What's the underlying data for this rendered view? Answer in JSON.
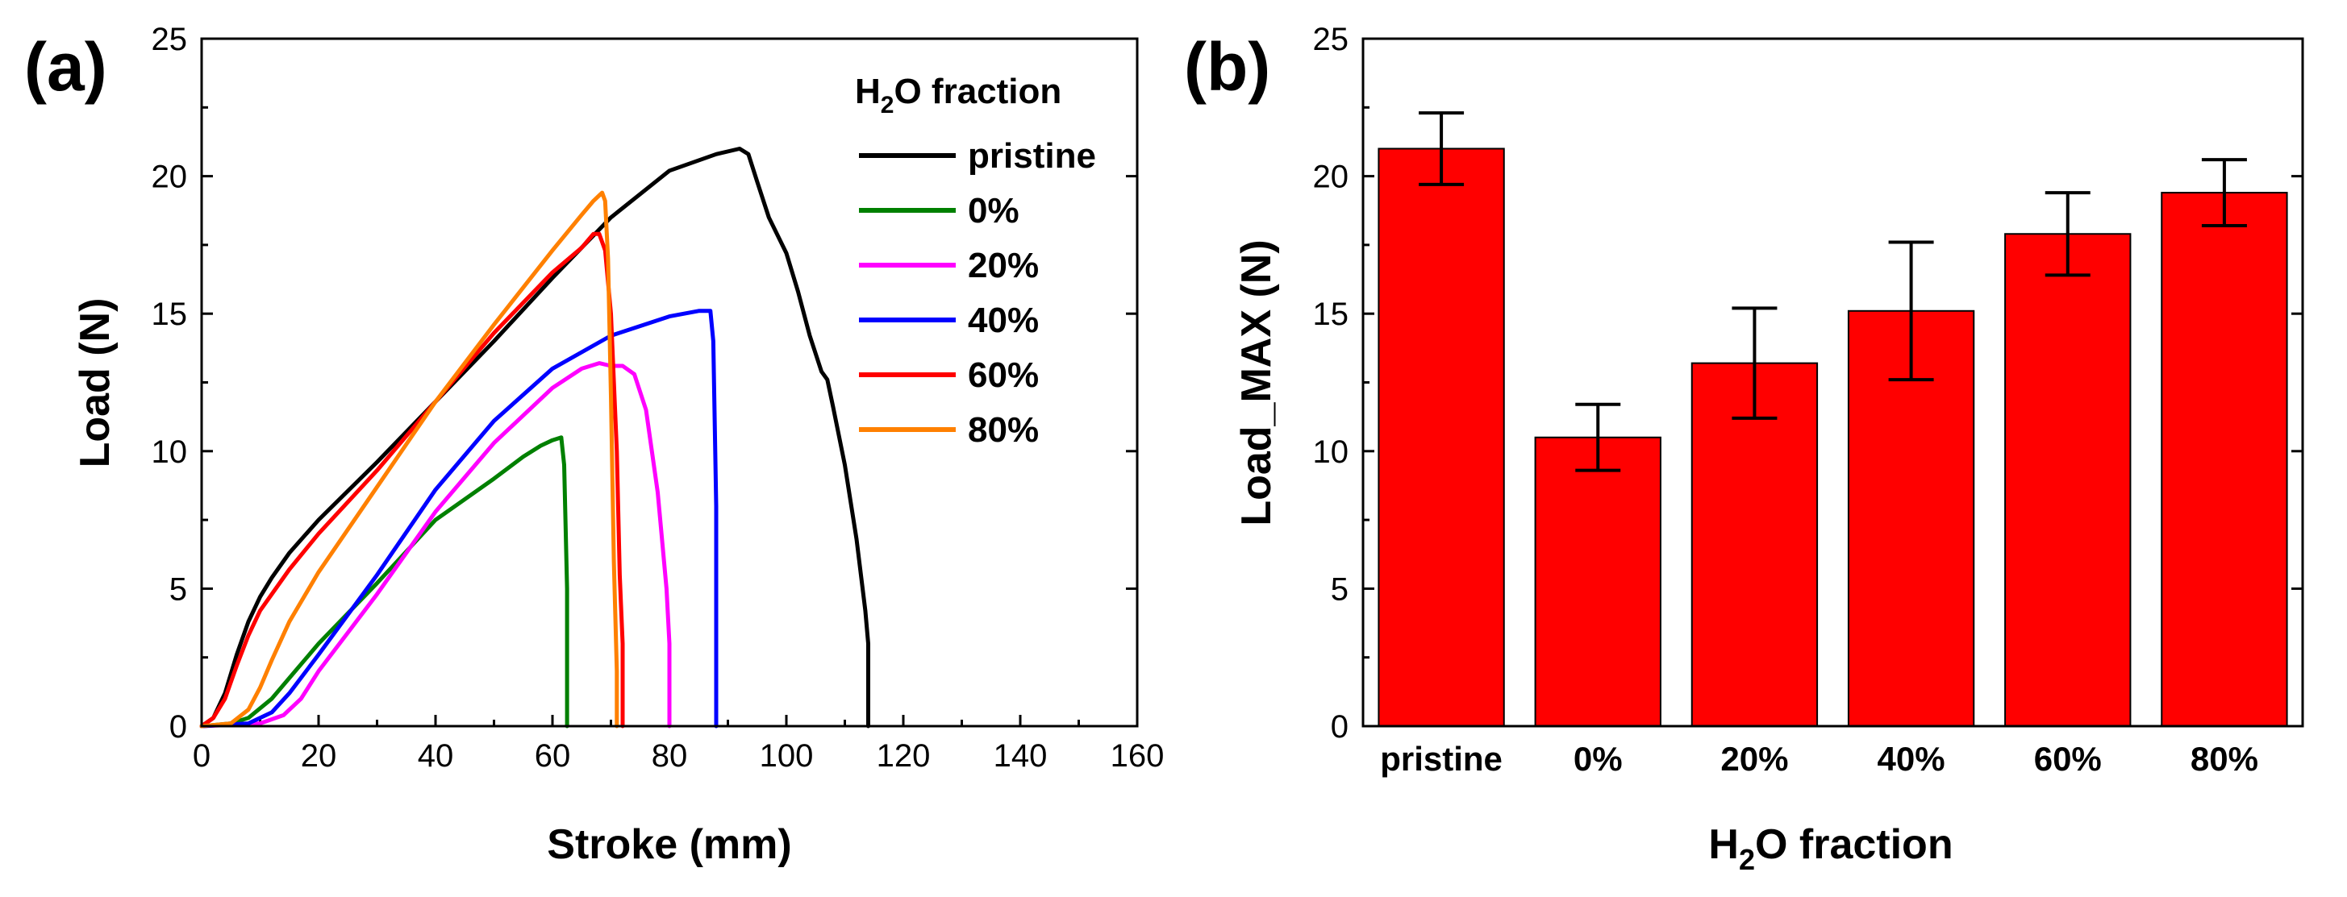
{
  "chart_data": [
    {
      "type": "line",
      "panel_label": "(a)",
      "xlabel": "Stroke (mm)",
      "ylabel": "Load (N)",
      "xlim": [
        0,
        160
      ],
      "ylim": [
        0,
        25
      ],
      "xticks": [
        0,
        20,
        40,
        60,
        80,
        100,
        120,
        140,
        160
      ],
      "yticks": [
        0,
        5,
        10,
        15,
        20,
        25
      ],
      "legend": {
        "title_main": "H",
        "title_sub": "2",
        "title_rest": "O fraction",
        "position": "top-right"
      },
      "series": [
        {
          "name": "pristine",
          "color": "#000000",
          "x": [
            0,
            2,
            4,
            6,
            8,
            10,
            12,
            15,
            20,
            30,
            40,
            50,
            60,
            70,
            80,
            88,
            92,
            93.5,
            95,
            97,
            100,
            102,
            104,
            106,
            107,
            108,
            110,
            112,
            113.5,
            114,
            114
          ],
          "y": [
            0,
            0.3,
            1.2,
            2.6,
            3.8,
            4.7,
            5.4,
            6.3,
            7.5,
            9.6,
            11.8,
            14.0,
            16.3,
            18.5,
            20.2,
            20.8,
            21.0,
            20.8,
            19.8,
            18.5,
            17.2,
            15.8,
            14.2,
            12.9,
            12.6,
            11.6,
            9.5,
            6.8,
            4.2,
            3.0,
            0
          ]
        },
        {
          "name": "0%",
          "color": "#008000",
          "x": [
            0,
            5,
            8,
            12,
            16,
            20,
            30,
            40,
            50,
            55,
            58,
            60,
            61.5,
            62,
            62.5,
            62.5
          ],
          "y": [
            0,
            0.1,
            0.3,
            1.0,
            2.0,
            3.0,
            5.2,
            7.5,
            9.0,
            9.8,
            10.2,
            10.4,
            10.5,
            9.5,
            5.0,
            0
          ]
        },
        {
          "name": "20%",
          "color": "#ff00ff",
          "x": [
            0,
            10,
            14,
            17,
            20,
            25,
            30,
            40,
            50,
            60,
            65,
            68,
            70,
            72,
            74,
            76,
            78,
            79.5,
            80,
            80
          ],
          "y": [
            0,
            0.1,
            0.4,
            1.0,
            2.0,
            3.4,
            4.8,
            7.8,
            10.3,
            12.3,
            13.0,
            13.2,
            13.1,
            13.1,
            12.8,
            11.5,
            8.5,
            5.0,
            3.0,
            0
          ]
        },
        {
          "name": "40%",
          "color": "#0000ff",
          "x": [
            0,
            8,
            12,
            15,
            20,
            30,
            40,
            50,
            60,
            70,
            80,
            85,
            87,
            87.5,
            88,
            88
          ],
          "y": [
            0,
            0.1,
            0.5,
            1.2,
            2.6,
            5.5,
            8.6,
            11.1,
            13.0,
            14.2,
            14.9,
            15.1,
            15.1,
            14.0,
            8.0,
            0
          ]
        },
        {
          "name": "60%",
          "color": "#ff0000",
          "x": [
            0,
            2,
            4,
            6,
            8,
            10,
            15,
            20,
            30,
            40,
            50,
            60,
            65,
            67,
            68,
            69,
            70,
            71,
            71.5,
            72,
            72
          ],
          "y": [
            0,
            0.3,
            1.0,
            2.2,
            3.3,
            4.2,
            5.7,
            7.0,
            9.3,
            11.8,
            14.3,
            16.5,
            17.4,
            17.9,
            17.9,
            17.3,
            15.0,
            10.0,
            5.5,
            3.0,
            0
          ]
        },
        {
          "name": "80%",
          "color": "#ff8000",
          "x": [
            0,
            5,
            8,
            10,
            12,
            15,
            20,
            30,
            40,
            50,
            60,
            65,
            67,
            68,
            68.5,
            69,
            69.5,
            70,
            70.5,
            71,
            71
          ],
          "y": [
            0,
            0.1,
            0.6,
            1.4,
            2.4,
            3.8,
            5.6,
            8.7,
            11.8,
            14.6,
            17.3,
            18.6,
            19.1,
            19.3,
            19.4,
            19.1,
            17.0,
            12.0,
            6.0,
            2.0,
            0
          ]
        }
      ]
    },
    {
      "type": "bar",
      "panel_label": "(b)",
      "xlabel_main": "H",
      "xlabel_sub": "2",
      "xlabel_rest": "O fraction",
      "ylabel": "Load_MAX (N)",
      "ylim": [
        0,
        25
      ],
      "yticks": [
        0,
        5,
        10,
        15,
        20,
        25
      ],
      "categories": [
        "pristine",
        "0%",
        "20%",
        "40%",
        "60%",
        "80%"
      ],
      "values": [
        21.0,
        10.5,
        13.2,
        15.1,
        17.9,
        19.4
      ],
      "errors": [
        1.3,
        1.2,
        2.0,
        2.5,
        1.5,
        1.2
      ],
      "bar_color": "#ff0000"
    }
  ]
}
